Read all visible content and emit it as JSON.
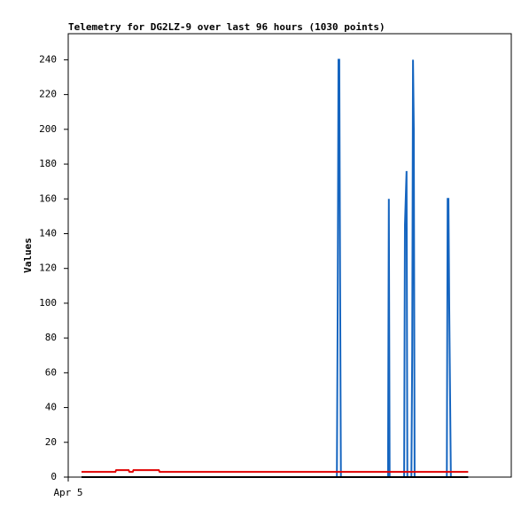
{
  "chart_data": {
    "type": "line",
    "title": "Telemetry for DG2LZ-9 over last 96 hours (1030 points)",
    "y_label": "Values",
    "xlim": [
      0,
      110
    ],
    "xticks": [
      {
        "value": 0,
        "label": "Apr 5"
      }
    ],
    "ylim": [
      0,
      255
    ],
    "yticks": [
      0,
      20,
      40,
      60,
      80,
      100,
      120,
      140,
      160,
      180,
      200,
      220,
      240
    ],
    "grid": false,
    "series": [
      {
        "color": "#1565c0",
        "x": [
          3.3,
          66.7,
          66.9,
          67.1,
          67.3,
          67.5,
          67.7,
          79.4,
          79.6,
          79.8,
          83.4,
          83.6,
          84.0,
          84.2,
          85.2,
          85.4,
          85.6,
          85.8,
          86.0,
          94.0,
          94.2,
          94.4,
          94.6,
          94.8,
          95.0,
          99.3
        ],
        "values": [
          0,
          0,
          97,
          240,
          240,
          112,
          0,
          0,
          160,
          0,
          0,
          145,
          176,
          0,
          0,
          72,
          240,
          200,
          0,
          0,
          160,
          160,
          97,
          48,
          0,
          0
        ]
      },
      {
        "color": "#e00000",
        "x": [
          3.3,
          11.7,
          11.9,
          15.0,
          15.2,
          16.0,
          16.2,
          22.5,
          22.7,
          99.3
        ],
        "values": [
          3,
          3,
          4,
          4,
          3,
          3,
          4,
          4,
          3,
          3
        ]
      },
      {
        "color": "#000000",
        "x": [
          3.3,
          99.3
        ],
        "values": [
          0,
          0
        ]
      }
    ]
  }
}
